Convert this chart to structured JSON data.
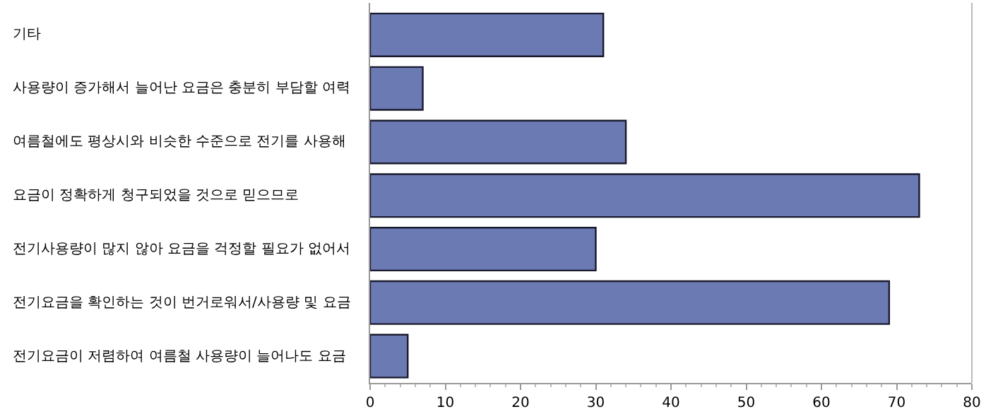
{
  "chart_data": {
    "type": "bar",
    "orientation": "horizontal",
    "categories": [
      "기타",
      "사용량이 증가해서 늘어난 요금은 충분히 부담할 여력",
      "여름철에도 평상시와 비슷한 수준으로 전기를 사용해",
      "요금이 정확하게 청구되었을 것으로 믿으므로",
      "전기사용량이 많지 않아 요금을 걱정할 필요가 없어서",
      "전기요금을 확인하는 것이 번거로워서/사용량 및 요금",
      "전기요금이 저렴하여 여름철 사용량이 늘어나도 요금"
    ],
    "values": [
      31,
      7,
      34,
      73,
      30,
      69,
      5
    ],
    "color": "#6b7ab2",
    "xlim": [
      0,
      80
    ],
    "xticks": [
      0,
      10,
      20,
      30,
      40,
      50,
      60,
      70,
      80
    ]
  }
}
